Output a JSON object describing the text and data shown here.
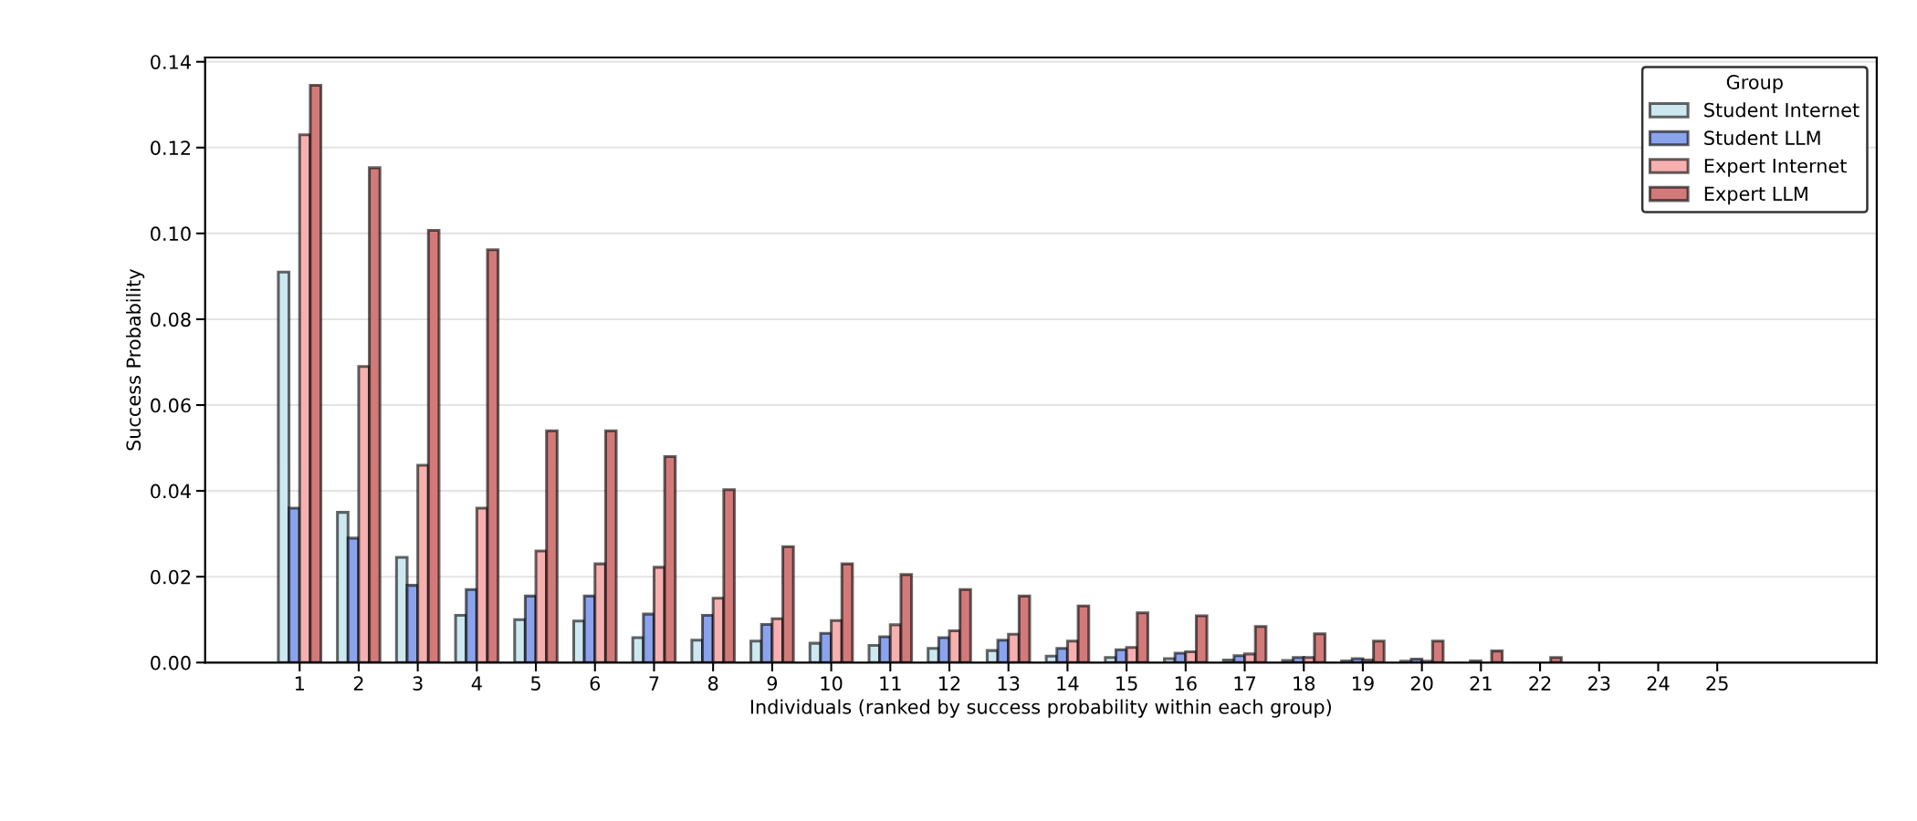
{
  "chart_data": {
    "type": "bar",
    "xlabel": "Individuals (ranked by success probability within each group)",
    "ylabel": "Success Probability",
    "legend_title": "Group",
    "categories": [
      "1",
      "2",
      "3",
      "4",
      "5",
      "6",
      "7",
      "8",
      "9",
      "10",
      "11",
      "12",
      "13",
      "14",
      "15",
      "16",
      "17",
      "18",
      "19",
      "20",
      "21",
      "22",
      "23",
      "24",
      "25"
    ],
    "series": [
      {
        "name": "Student Internet",
        "color": "#cde8ef",
        "values": [
          0.091,
          0.035,
          0.0245,
          0.011,
          0.01,
          0.0097,
          0.0058,
          0.0052,
          0.005,
          0.0045,
          0.004,
          0.0033,
          0.0028,
          0.0015,
          0.0012,
          0.0009,
          0.0006,
          0.0005,
          0.0004,
          0.0003,
          null,
          null,
          null,
          null,
          null
        ]
      },
      {
        "name": "Student LLM",
        "color": "#8ba3ec",
        "values": [
          0.036,
          0.029,
          0.018,
          0.017,
          0.0155,
          0.0155,
          0.0113,
          0.011,
          0.0089,
          0.0068,
          0.006,
          0.0058,
          0.0052,
          0.0033,
          0.003,
          0.0022,
          0.0016,
          0.0012,
          0.0009,
          0.0008,
          0.0004,
          null,
          null,
          null,
          null
        ]
      },
      {
        "name": "Expert Internet",
        "color": "#f6b0b0",
        "values": [
          0.123,
          0.069,
          0.046,
          0.036,
          0.026,
          0.023,
          0.0222,
          0.015,
          0.0102,
          0.0098,
          0.0088,
          0.0074,
          0.0066,
          0.005,
          0.0035,
          0.0025,
          0.002,
          0.0012,
          0.0006,
          0.0003,
          null,
          null,
          null,
          null,
          null
        ]
      },
      {
        "name": "Expert LLM",
        "color": "#d27a7a",
        "values": [
          0.1345,
          0.1153,
          0.1007,
          0.0962,
          0.054,
          0.054,
          0.048,
          0.0403,
          0.027,
          0.023,
          0.0205,
          0.017,
          0.0155,
          0.0132,
          0.0116,
          0.0109,
          0.0084,
          0.0067,
          0.005,
          0.005,
          0.0027,
          0.0012,
          null,
          null,
          null
        ]
      }
    ],
    "ylim": [
      0,
      0.141
    ],
    "yticks": [
      {
        "value": 0,
        "label": "0.00"
      },
      {
        "value": 0.02,
        "label": "0.02"
      },
      {
        "value": 0.04,
        "label": "0.04"
      },
      {
        "value": 0.06,
        "label": "0.06"
      },
      {
        "value": 0.08,
        "label": "0.08"
      },
      {
        "value": 0.1,
        "label": "0.10"
      },
      {
        "value": 0.12,
        "label": "0.12"
      },
      {
        "value": 0.14,
        "label": "0.14"
      }
    ],
    "grid": "y",
    "legend": "top right"
  }
}
